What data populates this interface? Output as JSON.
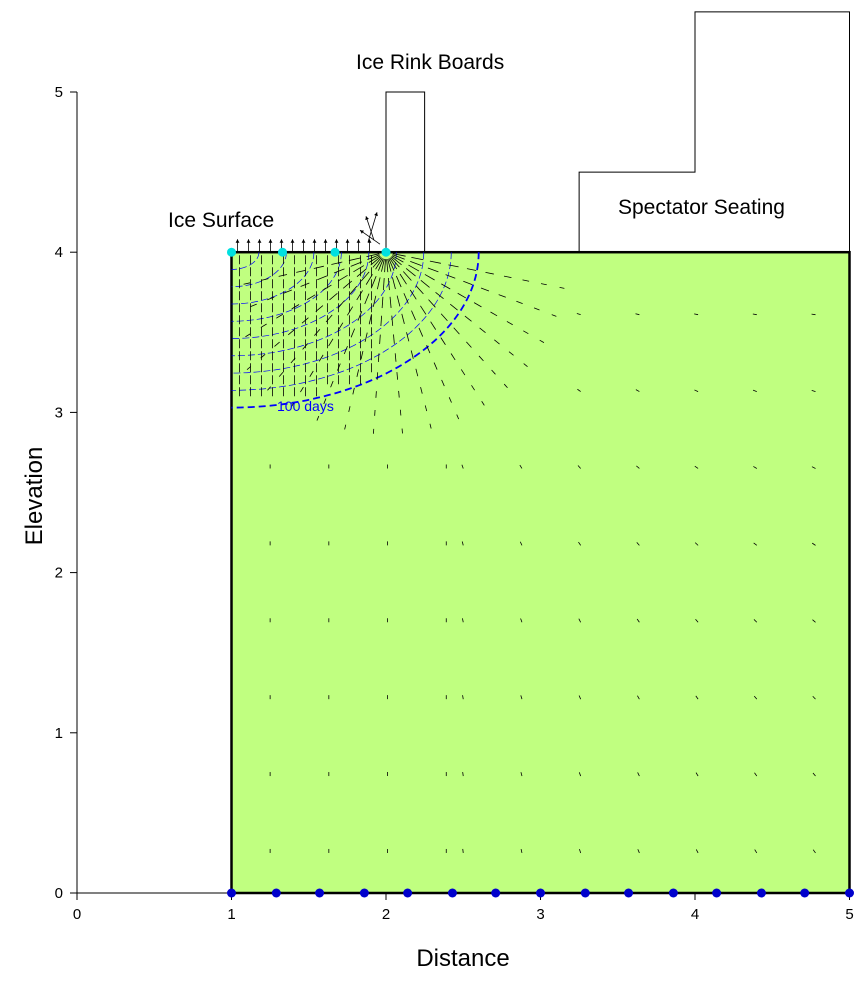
{
  "chart_data": {
    "type": "diagram",
    "xlabel": "Distance",
    "ylabel": "Elevation",
    "xlim": [
      0,
      5
    ],
    "ylim": [
      0,
      5
    ],
    "x_ticks": [
      "0",
      "1",
      "2",
      "3",
      "4",
      "5"
    ],
    "y_ticks": [
      "0",
      "1",
      "2",
      "3",
      "4",
      "5"
    ],
    "annotations": {
      "ice_surface": "Ice Surface",
      "rink_boards": "Ice Rink Boards",
      "spectator_seating": "Spectator Seating",
      "contour_label": "100 days"
    },
    "soil_region": {
      "x": [
        1,
        5
      ],
      "y": [
        0,
        4
      ],
      "color": "#c0ff80"
    },
    "rink_boards_outline": [
      [
        2,
        4
      ],
      [
        2,
        5
      ],
      [
        2.25,
        5
      ],
      [
        2.25,
        4
      ]
    ],
    "seating_outline": [
      [
        3.25,
        4
      ],
      [
        3.25,
        4.5
      ],
      [
        4,
        4.5
      ],
      [
        4,
        5.5
      ],
      [
        5,
        5.5
      ],
      [
        5,
        4
      ]
    ],
    "ice_surface_nodes": {
      "x": [
        1,
        1.33,
        1.67,
        2
      ],
      "y": 4,
      "color": "#00e0e0"
    },
    "bottom_nodes": {
      "x": [
        1,
        1.29,
        1.57,
        1.86,
        2.14,
        2.43,
        2.71,
        3,
        3.29,
        3.57,
        3.86,
        4.14,
        4.43,
        4.71,
        5
      ],
      "y": 0,
      "color": "#0000cc"
    },
    "frost_front_100_days": {
      "radius_x": 1.6,
      "radius_y": 0.97,
      "center": [
        1,
        4
      ],
      "color": "#0000ff"
    },
    "colors": {
      "contour": "#0000ff",
      "vectors": "#000000"
    }
  }
}
